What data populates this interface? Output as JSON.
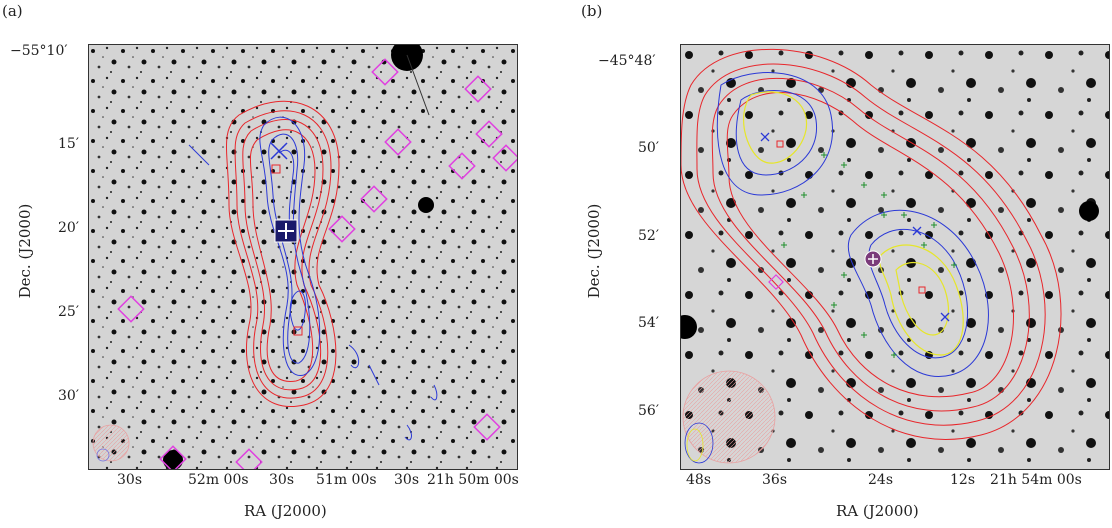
{
  "panels": [
    {
      "label": "(a)",
      "xlabel": "RA (J2000)",
      "ylabel": "Dec. (J2000)",
      "x_ticks": [
        "30s",
        "52m 00s",
        "30s",
        "51m 00s",
        "30s",
        "21h 50m 00s"
      ],
      "y_ticks": [
        "−55°10′",
        "15′",
        "20′",
        "25′",
        "30′"
      ]
    },
    {
      "label": "(b)",
      "xlabel": "RA (J2000)",
      "ylabel": "Dec. (J2000)",
      "x_ticks": [
        "48s",
        "36s",
        "24s",
        "12s",
        "21h 54m 00s"
      ],
      "y_ticks": [
        "−45°48′",
        "50′",
        "52′",
        "54′",
        "56′"
      ]
    }
  ],
  "colors": {
    "red_contour": "#e8262b",
    "blue_contour": "#2b39d6",
    "yellow_contour": "#e6e62a",
    "magenta_marker": "#e040e0",
    "green_marker": "#1d8f2a",
    "background": "#cfcfcf"
  }
}
